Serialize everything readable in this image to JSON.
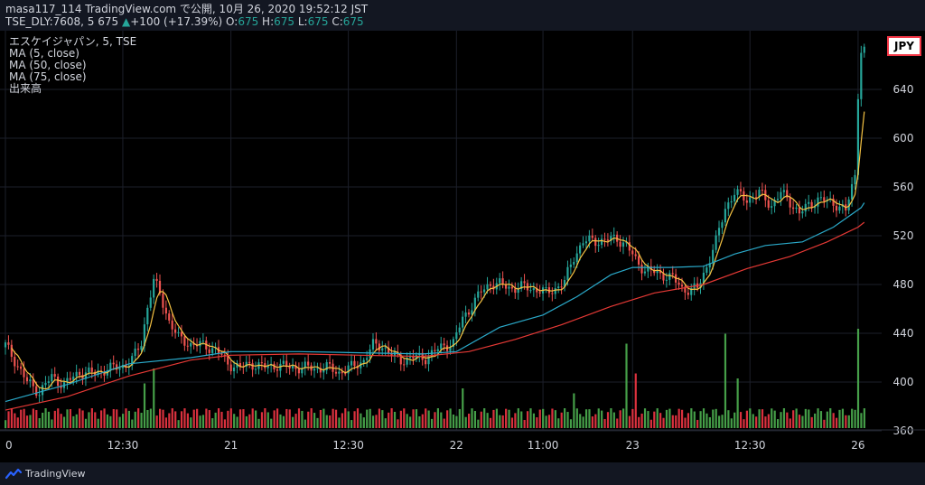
{
  "header": {
    "line1": "masa117_114 TradingView.com で公開, 10月 26, 2020 19:52:12 JST",
    "symbol": "TSE_DLY:7608, 5",
    "last": "675",
    "change_arrow": "▲",
    "change": "+100 (+17.39%)",
    "o_label": "O:",
    "o_val": "675",
    "h_label": "H:",
    "h_val": "675",
    "l_label": "L:",
    "l_val": "675",
    "c_label": "C:",
    "c_val": "675"
  },
  "legend": {
    "title": "エスケイジャパン, 5, TSE",
    "ma5": "MA (5, close)",
    "ma50": "MA (50, close)",
    "ma75": "MA (75, close)",
    "volume": "出来高"
  },
  "currency": "JPY",
  "footer": {
    "brand": "TradingView"
  },
  "colors": {
    "up": "#26a69a",
    "down": "#ef5350",
    "vol_up": "#4caf50",
    "vol_down": "#f23645",
    "ma5": "#f6c343",
    "ma50": "#2aa9c9",
    "ma75": "#e53935",
    "grid": "#1c1f2a",
    "axis_text": "#d1d4dc"
  },
  "chart_data": {
    "type": "candlestick",
    "title": "エスケイジャパン, 5, TSE",
    "ylim": [
      360,
      675
    ],
    "y_ticks": [
      360,
      400,
      440,
      480,
      520,
      560,
      600,
      640
    ],
    "x_tick_labels": [
      {
        "label": "0",
        "bar": 0
      },
      {
        "label": "12:30",
        "bar": 38
      },
      {
        "label": "21",
        "bar": 73
      },
      {
        "label": "12:30",
        "bar": 111
      },
      {
        "label": "22",
        "bar": 146
      },
      {
        "label": "11:00",
        "bar": 174
      },
      {
        "label": "23",
        "bar": 203
      },
      {
        "label": "12:30",
        "bar": 241
      },
      {
        "label": "26",
        "bar": 276
      }
    ],
    "close_path": [
      [
        0,
        430
      ],
      [
        3,
        418
      ],
      [
        7,
        400
      ],
      [
        11,
        392
      ],
      [
        15,
        404
      ],
      [
        19,
        398
      ],
      [
        24,
        408
      ],
      [
        29,
        407
      ],
      [
        33,
        411
      ],
      [
        37,
        412
      ],
      [
        41,
        418
      ],
      [
        44,
        432
      ],
      [
        46,
        462
      ],
      [
        48,
        483
      ],
      [
        50,
        472
      ],
      [
        53,
        450
      ],
      [
        56,
        436
      ],
      [
        60,
        431
      ],
      [
        64,
        430
      ],
      [
        68,
        427
      ],
      [
        72,
        415
      ],
      [
        76,
        412
      ],
      [
        80,
        415
      ],
      [
        84,
        412
      ],
      [
        88,
        414
      ],
      [
        92,
        412
      ],
      [
        96,
        412
      ],
      [
        100,
        411
      ],
      [
        104,
        412
      ],
      [
        108,
        408
      ],
      [
        112,
        412
      ],
      [
        116,
        418
      ],
      [
        119,
        430
      ],
      [
        122,
        430
      ],
      [
        125,
        422
      ],
      [
        128,
        418
      ],
      [
        132,
        420
      ],
      [
        136,
        420
      ],
      [
        139,
        425
      ],
      [
        142,
        430
      ],
      [
        145,
        432
      ],
      [
        148,
        452
      ],
      [
        151,
        463
      ],
      [
        154,
        474
      ],
      [
        157,
        481
      ],
      [
        160,
        480
      ],
      [
        164,
        477
      ],
      [
        168,
        478
      ],
      [
        172,
        476
      ],
      [
        175,
        473
      ],
      [
        178,
        477
      ],
      [
        181,
        482
      ],
      [
        184,
        503
      ],
      [
        187,
        515
      ],
      [
        190,
        516
      ],
      [
        194,
        516
      ],
      [
        198,
        518
      ],
      [
        201,
        512
      ],
      [
        204,
        500
      ],
      [
        207,
        492
      ],
      [
        210,
        490
      ],
      [
        213,
        488
      ],
      [
        216,
        485
      ],
      [
        219,
        477
      ],
      [
        222,
        475
      ],
      [
        224,
        477
      ],
      [
        227,
        495
      ],
      [
        230,
        515
      ],
      [
        233,
        543
      ],
      [
        236,
        555
      ],
      [
        240,
        550
      ],
      [
        244,
        555
      ],
      [
        248,
        545
      ],
      [
        251,
        555
      ],
      [
        254,
        548
      ],
      [
        257,
        538
      ],
      [
        260,
        545
      ],
      [
        263,
        550
      ],
      [
        266,
        548
      ],
      [
        269,
        546
      ],
      [
        272,
        540
      ],
      [
        275,
        570
      ],
      [
        276,
        632
      ],
      [
        277,
        670
      ],
      [
        278,
        675
      ]
    ],
    "ma5_anchor_bar": 2,
    "ma50_path": [
      [
        0,
        384
      ],
      [
        20,
        398
      ],
      [
        40,
        415
      ],
      [
        60,
        420
      ],
      [
        73,
        425
      ],
      [
        95,
        425
      ],
      [
        115,
        424
      ],
      [
        135,
        423
      ],
      [
        146,
        425
      ],
      [
        160,
        445
      ],
      [
        174,
        455
      ],
      [
        185,
        470
      ],
      [
        196,
        488
      ],
      [
        203,
        494
      ],
      [
        215,
        494
      ],
      [
        226,
        495
      ],
      [
        236,
        505
      ],
      [
        246,
        512
      ],
      [
        258,
        515
      ],
      [
        268,
        527
      ],
      [
        277,
        543
      ],
      [
        278,
        547
      ]
    ],
    "ma75_path": [
      [
        0,
        377
      ],
      [
        20,
        388
      ],
      [
        40,
        405
      ],
      [
        60,
        418
      ],
      [
        73,
        422
      ],
      [
        95,
        423
      ],
      [
        115,
        422
      ],
      [
        135,
        421
      ],
      [
        150,
        425
      ],
      [
        165,
        435
      ],
      [
        180,
        447
      ],
      [
        196,
        462
      ],
      [
        210,
        473
      ],
      [
        226,
        480
      ],
      [
        240,
        493
      ],
      [
        254,
        503
      ],
      [
        266,
        515
      ],
      [
        276,
        527
      ],
      [
        278,
        531
      ]
    ],
    "volume_spikes": [
      {
        "bar": 45,
        "rel": 0.45
      },
      {
        "bar": 48,
        "rel": 0.6
      },
      {
        "bar": 148,
        "rel": 0.4
      },
      {
        "bar": 184,
        "rel": 0.35
      },
      {
        "bar": 201,
        "rel": 0.85
      },
      {
        "bar": 204,
        "rel": 0.55
      },
      {
        "bar": 233,
        "rel": 0.95
      },
      {
        "bar": 237,
        "rel": 0.5
      },
      {
        "bar": 276,
        "rel": 1.0
      }
    ],
    "ma5_color": "#f6c343",
    "ma50_color": "#2aa9c9",
    "ma75_color": "#e53935"
  }
}
